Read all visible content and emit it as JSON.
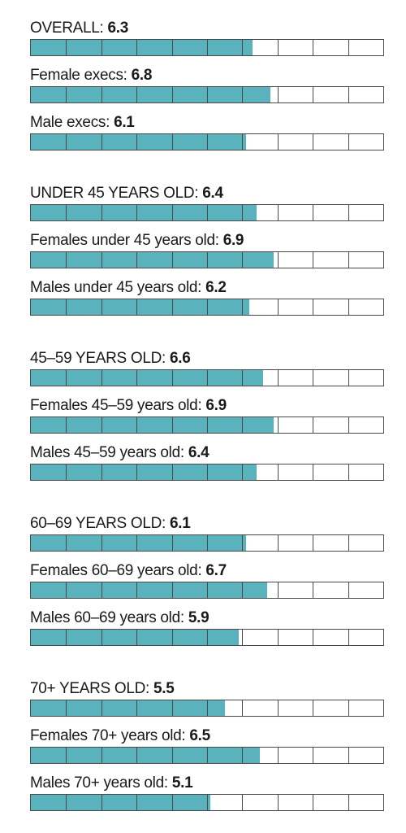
{
  "chart_data": {
    "type": "bar",
    "orientation": "horizontal",
    "scale_max": 10,
    "segments": 10,
    "colors": {
      "fill": "#5ab2bc",
      "empty": "#ffffff",
      "border": "#4a4a4a"
    },
    "groups": [
      {
        "rows": [
          {
            "label": "OVERALL:",
            "value": 6.3
          },
          {
            "label": "Female execs:",
            "value": 6.8
          },
          {
            "label": "Male execs:",
            "value": 6.1
          }
        ]
      },
      {
        "rows": [
          {
            "label": "UNDER 45 YEARS OLD:",
            "value": 6.4
          },
          {
            "label": "Females under 45 years old:",
            "value": 6.9
          },
          {
            "label": "Males under 45 years old:",
            "value": 6.2
          }
        ]
      },
      {
        "rows": [
          {
            "label": "45–59 YEARS OLD:",
            "value": 6.6
          },
          {
            "label": "Females 45–59 years old:",
            "value": 6.9
          },
          {
            "label": "Males 45–59 years old:",
            "value": 6.4
          }
        ]
      },
      {
        "rows": [
          {
            "label": "60–69 YEARS OLD:",
            "value": 6.1
          },
          {
            "label": "Females 60–69 years old:",
            "value": 6.7
          },
          {
            "label": "Males 60–69 years old:",
            "value": 5.9
          }
        ]
      },
      {
        "rows": [
          {
            "label": "70+ YEARS OLD:",
            "value": 5.5
          },
          {
            "label": "Females 70+ years old:",
            "value": 6.5
          },
          {
            "label": "Males 70+ years old:",
            "value": 5.1
          }
        ]
      }
    ]
  }
}
